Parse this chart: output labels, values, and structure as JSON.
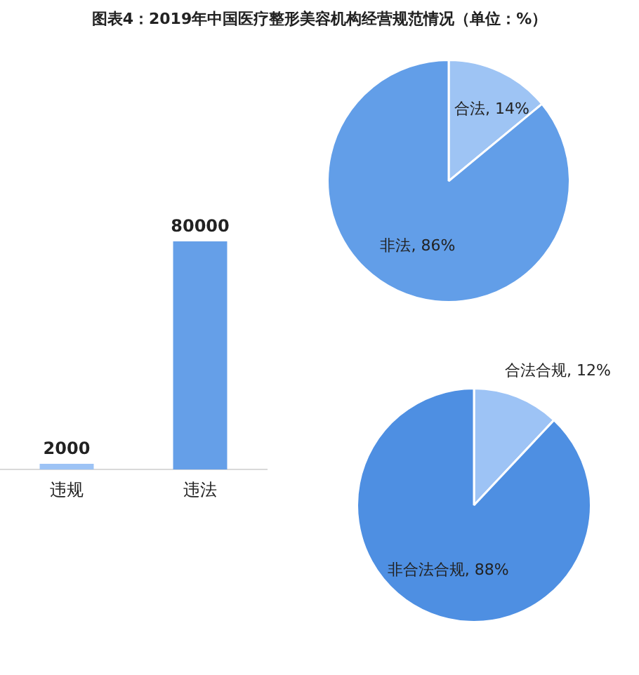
{
  "chart_data": [
    {
      "type": "bar",
      "title": "图表4：2019年中国医疗整形美容机构经营规范情况（单位：%）",
      "categories": [
        "违规",
        "违法"
      ],
      "values": [
        2000,
        80000
      ],
      "colors": [
        "#9dc3f5",
        "#659fe8"
      ],
      "data_labels": true,
      "legend": false
    },
    {
      "type": "pie",
      "categories": [
        "合法",
        "非法"
      ],
      "values": [
        14,
        86
      ],
      "value_labels": [
        "14%",
        "86%"
      ],
      "colors": [
        "#9ec4f4",
        "#629ee8"
      ],
      "legend": false
    },
    {
      "type": "pie",
      "categories": [
        "合法合规",
        "非合法合规"
      ],
      "values": [
        12,
        88
      ],
      "value_labels": [
        "12%",
        "88%"
      ],
      "colors": [
        "#9dc3f5",
        "#4e8fe2"
      ],
      "legend": false
    }
  ]
}
